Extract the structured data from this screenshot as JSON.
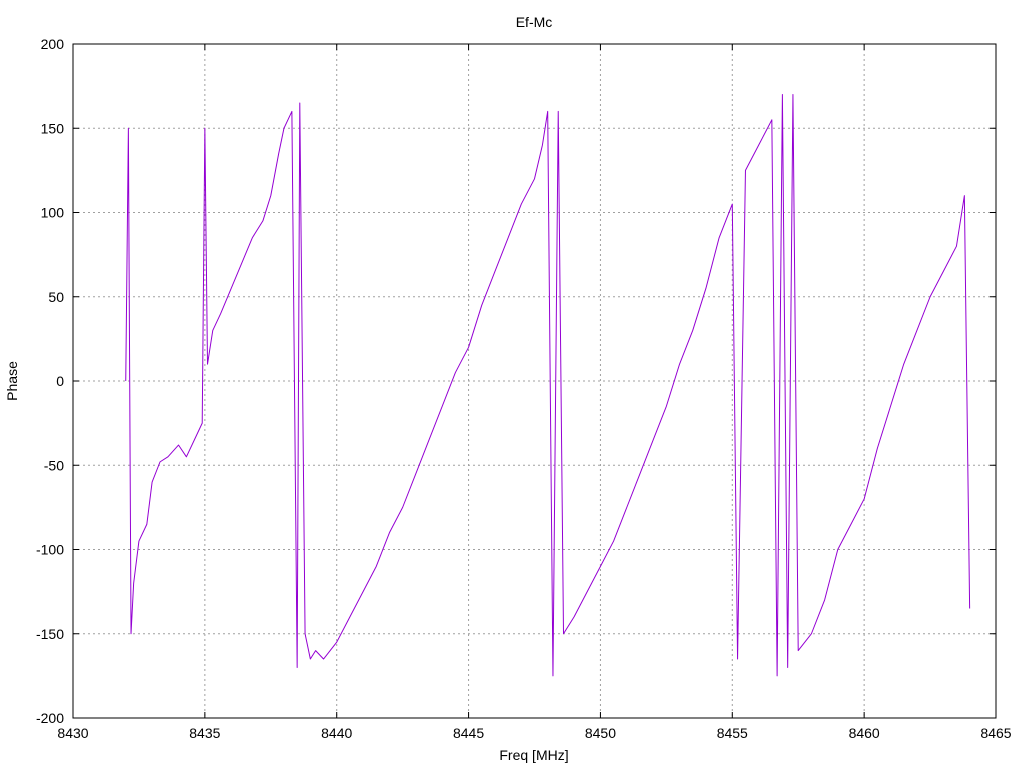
{
  "chart_data": {
    "type": "line",
    "title": "Ef-Mc",
    "xlabel": "Freq [MHz]",
    "ylabel": "Phase",
    "xlim": [
      8430,
      8465
    ],
    "ylim": [
      -200,
      200
    ],
    "xticks": [
      8430,
      8435,
      8440,
      8445,
      8450,
      8455,
      8460,
      8465
    ],
    "yticks": [
      -200,
      -150,
      -100,
      -50,
      0,
      50,
      100,
      150,
      200
    ],
    "xtick_labels": [
      "8430",
      "8435",
      "8440",
      "8445",
      "8450",
      "8455",
      "8460",
      "8465"
    ],
    "ytick_labels": [
      "-200",
      "-150",
      "-100",
      "-50",
      "0",
      "50",
      "100",
      "150",
      "200"
    ],
    "grid": true,
    "legend": "none",
    "series_color": "#9400d3",
    "series": [
      {
        "x": [
          8432.0,
          8432.1,
          8432.2,
          8432.3,
          8432.5,
          8432.8,
          8433.0,
          8433.3,
          8433.6,
          8434.0,
          8434.3,
          8434.6,
          8434.9,
          8435.0,
          8435.1,
          8435.3,
          8435.6,
          8436.0,
          8436.4,
          8436.8,
          8437.2,
          8437.5,
          8437.8,
          8438.0,
          8438.3,
          8438.5,
          8438.6,
          8438.8,
          8439.0,
          8439.2,
          8439.5,
          8440.0,
          8440.5,
          8441.0,
          8441.5,
          8442.0,
          8442.5,
          8443.0,
          8443.5,
          8444.0,
          8444.5,
          8445.0,
          8445.5,
          8446.0,
          8446.5,
          8447.0,
          8447.5,
          8447.8,
          8448.0,
          8448.2,
          8448.4,
          8448.6,
          8449.0,
          8449.5,
          8450.0,
          8450.5,
          8451.0,
          8451.5,
          8452.0,
          8452.5,
          8453.0,
          8453.5,
          8454.0,
          8454.5,
          8455.0,
          8455.2,
          8455.5,
          8456.0,
          8456.5,
          8456.7,
          8456.9,
          8457.1,
          8457.3,
          8457.5,
          8458.0,
          8458.5,
          8459.0,
          8459.5,
          8460.0,
          8460.5,
          8461.0,
          8461.5,
          8462.0,
          8462.5,
          8463.0,
          8463.5,
          8463.8,
          8464.0
        ],
        "y": [
          0,
          150,
          -150,
          -120,
          -95,
          -85,
          -60,
          -48,
          -45,
          -38,
          -45,
          -35,
          -25,
          150,
          10,
          30,
          40,
          55,
          70,
          85,
          95,
          110,
          135,
          150,
          160,
          -170,
          165,
          -150,
          -165,
          -160,
          -165,
          -155,
          -140,
          -125,
          -110,
          -90,
          -75,
          -55,
          -35,
          -15,
          5,
          20,
          45,
          65,
          85,
          105,
          120,
          140,
          160,
          -175,
          160,
          -150,
          -140,
          -125,
          -110,
          -95,
          -75,
          -55,
          -35,
          -15,
          10,
          30,
          55,
          85,
          105,
          -165,
          125,
          140,
          155,
          -175,
          170,
          -170,
          170,
          -160,
          -150,
          -130,
          -100,
          -85,
          -70,
          -40,
          -15,
          10,
          30,
          50,
          65,
          80,
          110,
          -135
        ]
      }
    ]
  }
}
